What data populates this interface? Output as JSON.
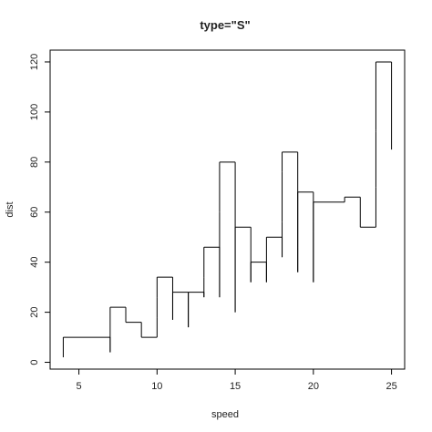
{
  "chart_data": {
    "type": "step",
    "title": "type=\"S\"",
    "x_label": "speed",
    "y_label": "dist",
    "x": [
      4,
      4,
      7,
      7,
      8,
      9,
      10,
      10,
      10,
      11,
      11,
      12,
      12,
      12,
      12,
      13,
      13,
      13,
      13,
      14,
      14,
      14,
      14,
      15,
      15,
      15,
      16,
      16,
      17,
      17,
      17,
      18,
      18,
      18,
      18,
      19,
      19,
      19,
      20,
      20,
      20,
      20,
      20,
      22,
      23,
      24,
      24,
      24,
      24,
      25
    ],
    "values": [
      2,
      10,
      4,
      22,
      16,
      10,
      18,
      26,
      34,
      17,
      28,
      14,
      20,
      24,
      28,
      26,
      34,
      34,
      46,
      26,
      36,
      60,
      80,
      20,
      26,
      54,
      32,
      40,
      32,
      40,
      50,
      42,
      56,
      76,
      84,
      36,
      46,
      68,
      32,
      48,
      52,
      56,
      64,
      66,
      54,
      70,
      92,
      93,
      120,
      85
    ],
    "color": "#000000",
    "xlim": [
      3.16,
      25.84
    ],
    "ylim": [
      -2.72,
      124.72
    ],
    "xticks": [
      5,
      10,
      15,
      20,
      25
    ],
    "yticks": [
      0,
      20,
      40,
      60,
      80,
      100,
      120
    ]
  }
}
